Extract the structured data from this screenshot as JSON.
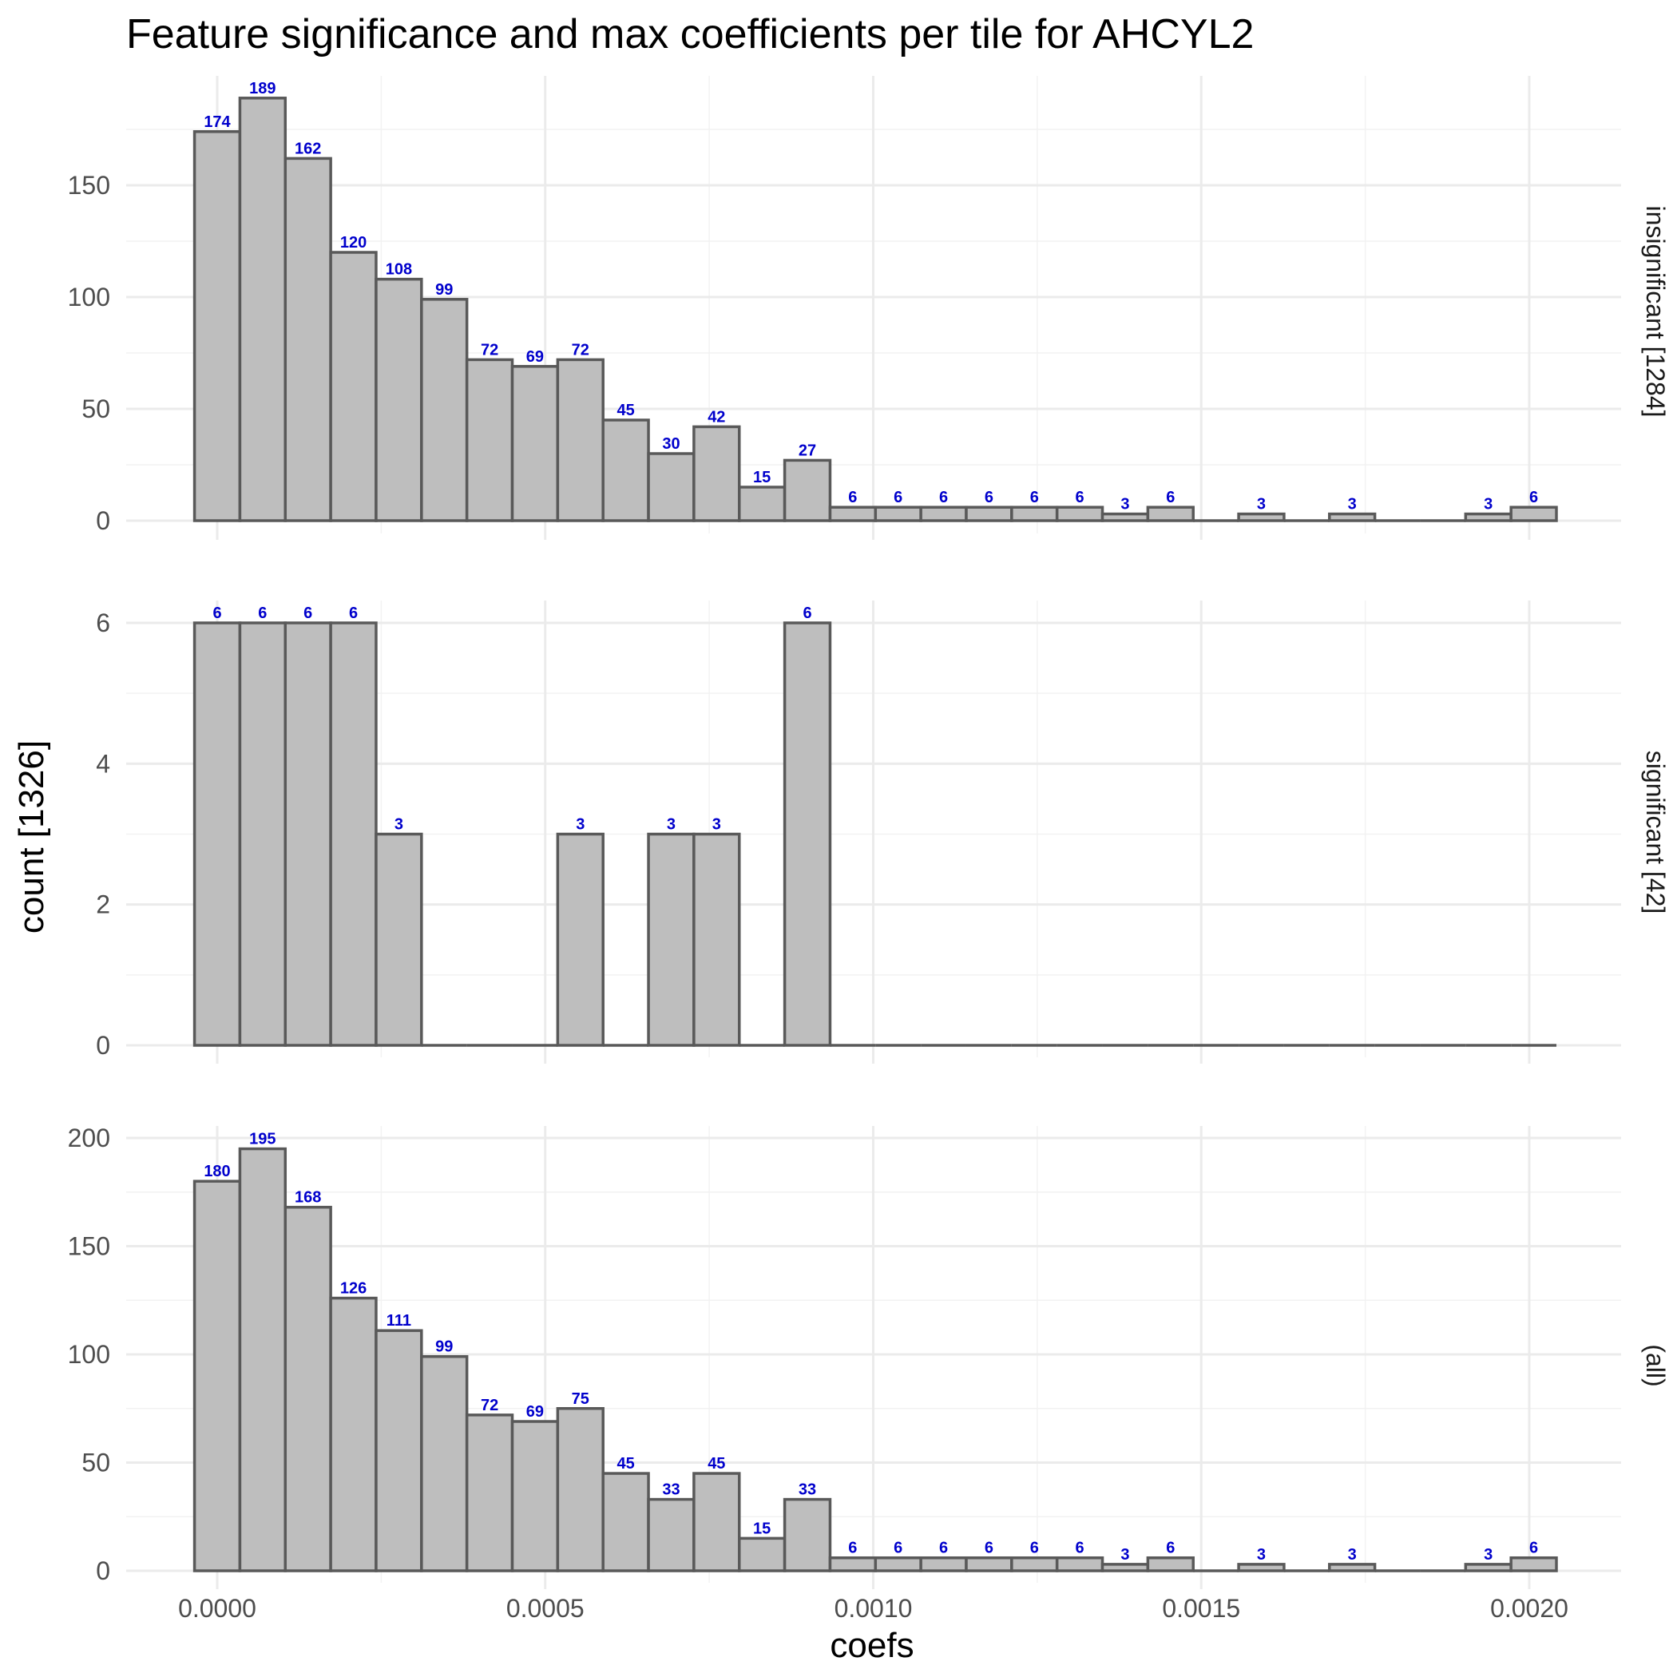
{
  "chart_data": {
    "type": "bar",
    "title": "Feature significance and max coefficients per tile for AHCYL2",
    "xlabel": "coefs",
    "ylabel": "count [1326]",
    "xlim": [
      -0.00014,
      0.00215
    ],
    "x_ticks": [
      0.0,
      0.0005,
      0.001,
      0.0015,
      0.002
    ],
    "x_tick_labels": [
      "0.0000",
      "0.0005",
      "0.0010",
      "0.0015",
      "0.0020"
    ],
    "grid": true,
    "bins": {
      "first_center": 0.0,
      "width": 6.92e-05,
      "count": 30
    },
    "panels": [
      {
        "label": "insignificant [1284]",
        "ylim": [
          0,
          190
        ],
        "y_ticks": [
          0,
          50,
          100,
          150
        ],
        "y_tick_labels": [
          "0",
          "50",
          "100",
          "150"
        ],
        "counts": [
          174,
          189,
          162,
          120,
          108,
          99,
          72,
          69,
          72,
          45,
          30,
          42,
          15,
          27,
          6,
          6,
          6,
          6,
          6,
          6,
          3,
          6,
          0,
          3,
          0,
          3,
          0,
          0,
          3,
          6
        ],
        "count_labels": [
          "174",
          "189",
          "162",
          "120",
          "108",
          "99",
          "72",
          "69",
          "72",
          "45",
          "30",
          "42",
          "15",
          "27",
          "6",
          "6",
          "6",
          "6",
          "6",
          "6",
          "3",
          "6",
          "",
          "3",
          "",
          "3",
          "",
          "",
          "3",
          "6"
        ]
      },
      {
        "label": "significant [42]",
        "ylim": [
          0,
          6.1
        ],
        "y_ticks": [
          0,
          2,
          4,
          6
        ],
        "y_tick_labels": [
          "0",
          "2",
          "4",
          "6"
        ],
        "counts": [
          6,
          6,
          6,
          6,
          3,
          0,
          0,
          0,
          3,
          0,
          3,
          3,
          0,
          6,
          0,
          0,
          0,
          0,
          0,
          0,
          0,
          0,
          0,
          0,
          0,
          0,
          0,
          0,
          0,
          0
        ],
        "count_labels": [
          "6",
          "6",
          "6",
          "6",
          "3",
          "",
          "",
          "",
          "3",
          "",
          "3",
          "3",
          "",
          "6",
          "",
          "",
          "",
          "",
          "",
          "",
          "",
          "",
          "",
          "",
          "",
          "",
          "",
          "",
          "",
          ""
        ]
      },
      {
        "label": "(all)",
        "ylim": [
          0,
          196
        ],
        "y_ticks": [
          0,
          50,
          100,
          150,
          200
        ],
        "y_tick_labels": [
          "0",
          "50",
          "100",
          "150",
          "200"
        ],
        "counts": [
          180,
          195,
          168,
          126,
          111,
          99,
          72,
          69,
          75,
          45,
          33,
          45,
          15,
          33,
          6,
          6,
          6,
          6,
          6,
          6,
          3,
          6,
          0,
          3,
          0,
          3,
          0,
          0,
          3,
          6
        ],
        "count_labels": [
          "180",
          "195",
          "168",
          "126",
          "111",
          "99",
          "72",
          "69",
          "75",
          "45",
          "33",
          "45",
          "15",
          "33",
          "6",
          "6",
          "6",
          "6",
          "6",
          "6",
          "3",
          "6",
          "",
          "3",
          "",
          "3",
          "",
          "",
          "3",
          "6"
        ]
      }
    ]
  }
}
